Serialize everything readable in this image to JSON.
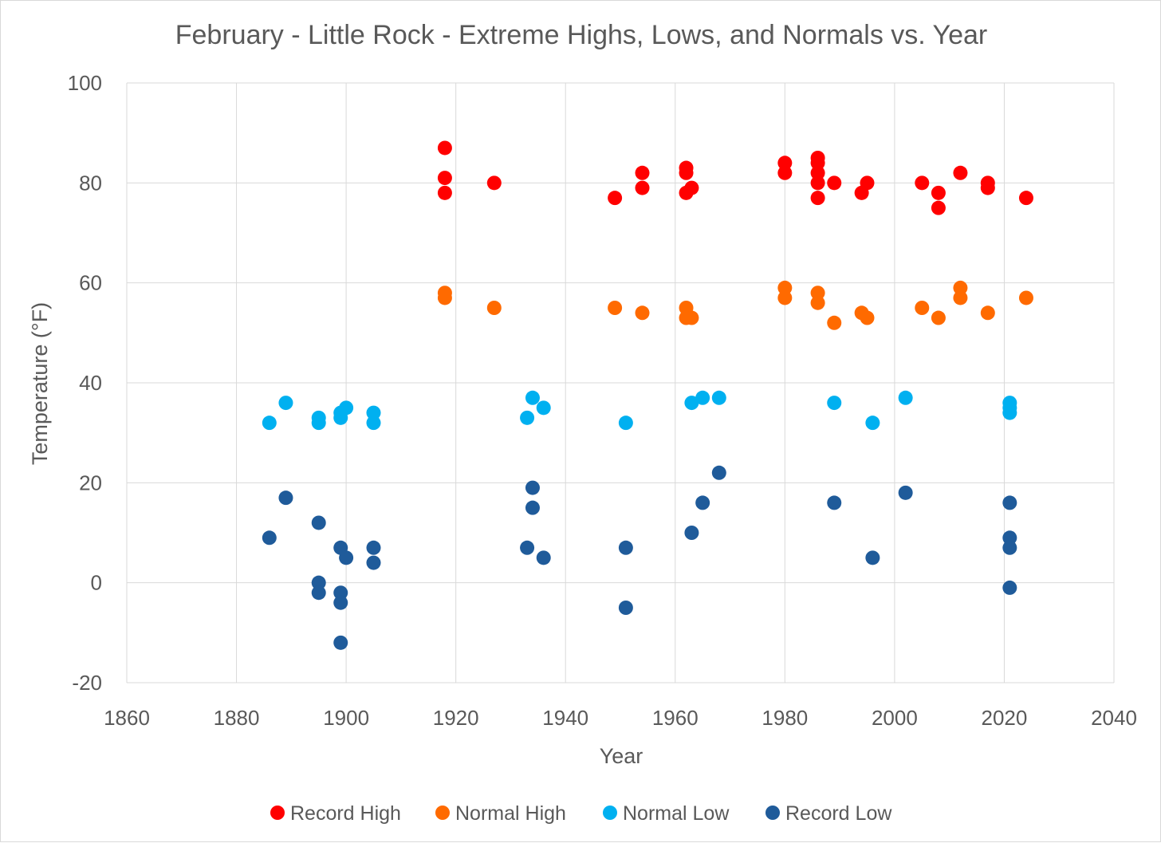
{
  "chart_data": {
    "type": "scatter",
    "title": "February - Little Rock - Extreme Highs, Lows, and Normals vs. Year",
    "xlabel": "Year",
    "ylabel": "Temperature (°F)",
    "xlim": [
      1860,
      2040
    ],
    "ylim": [
      -20,
      100
    ],
    "x_ticks": [
      1860,
      1880,
      1900,
      1920,
      1940,
      1960,
      1980,
      2000,
      2020,
      2040
    ],
    "y_ticks": [
      -20,
      0,
      20,
      40,
      60,
      80,
      100
    ],
    "grid": true,
    "legend_position": "bottom",
    "series": [
      {
        "name": "Record High",
        "color": "#ff0000",
        "points": [
          [
            1918,
            87
          ],
          [
            1918,
            81
          ],
          [
            1918,
            78
          ],
          [
            1927,
            80
          ],
          [
            1949,
            77
          ],
          [
            1954,
            82
          ],
          [
            1954,
            79
          ],
          [
            1962,
            83
          ],
          [
            1962,
            82
          ],
          [
            1962,
            78
          ],
          [
            1963,
            79
          ],
          [
            1980,
            84
          ],
          [
            1980,
            82
          ],
          [
            1986,
            85
          ],
          [
            1986,
            84
          ],
          [
            1986,
            82
          ],
          [
            1986,
            80
          ],
          [
            1986,
            77
          ],
          [
            1989,
            80
          ],
          [
            1994,
            78
          ],
          [
            1995,
            80
          ],
          [
            2005,
            80
          ],
          [
            2008,
            78
          ],
          [
            2008,
            75
          ],
          [
            2012,
            82
          ],
          [
            2017,
            80
          ],
          [
            2017,
            79
          ],
          [
            2024,
            77
          ]
        ]
      },
      {
        "name": "Normal High",
        "color": "#ff6a00",
        "points": [
          [
            1918,
            58
          ],
          [
            1918,
            57
          ],
          [
            1927,
            55
          ],
          [
            1949,
            55
          ],
          [
            1954,
            54
          ],
          [
            1962,
            55
          ],
          [
            1962,
            53
          ],
          [
            1963,
            53
          ],
          [
            1980,
            59
          ],
          [
            1980,
            57
          ],
          [
            1986,
            58
          ],
          [
            1986,
            56
          ],
          [
            1989,
            52
          ],
          [
            1994,
            54
          ],
          [
            1995,
            53
          ],
          [
            2005,
            55
          ],
          [
            2008,
            53
          ],
          [
            2012,
            59
          ],
          [
            2012,
            57
          ],
          [
            2017,
            54
          ],
          [
            2024,
            57
          ]
        ]
      },
      {
        "name": "Normal Low",
        "color": "#00b0f0",
        "points": [
          [
            1886,
            32
          ],
          [
            1889,
            36
          ],
          [
            1895,
            33
          ],
          [
            1895,
            32
          ],
          [
            1899,
            34
          ],
          [
            1899,
            33
          ],
          [
            1900,
            35
          ],
          [
            1905,
            34
          ],
          [
            1905,
            32
          ],
          [
            1933,
            33
          ],
          [
            1934,
            37
          ],
          [
            1936,
            35
          ],
          [
            1951,
            32
          ],
          [
            1963,
            36
          ],
          [
            1965,
            37
          ],
          [
            1968,
            37
          ],
          [
            1989,
            36
          ],
          [
            1996,
            32
          ],
          [
            2002,
            37
          ],
          [
            2021,
            36
          ],
          [
            2021,
            35
          ],
          [
            2021,
            34
          ]
        ]
      },
      {
        "name": "Record Low",
        "color": "#1f5b9a",
        "points": [
          [
            1886,
            9
          ],
          [
            1889,
            17
          ],
          [
            1895,
            12
          ],
          [
            1895,
            0
          ],
          [
            1895,
            -2
          ],
          [
            1899,
            7
          ],
          [
            1899,
            -2
          ],
          [
            1899,
            -4
          ],
          [
            1899,
            -12
          ],
          [
            1900,
            5
          ],
          [
            1905,
            7
          ],
          [
            1905,
            4
          ],
          [
            1933,
            7
          ],
          [
            1934,
            19
          ],
          [
            1934,
            15
          ],
          [
            1936,
            5
          ],
          [
            1951,
            7
          ],
          [
            1951,
            -5
          ],
          [
            1963,
            10
          ],
          [
            1965,
            16
          ],
          [
            1968,
            22
          ],
          [
            1989,
            16
          ],
          [
            1996,
            5
          ],
          [
            2002,
            18
          ],
          [
            2021,
            16
          ],
          [
            2021,
            9
          ],
          [
            2021,
            7
          ],
          [
            2021,
            -1
          ]
        ]
      }
    ]
  }
}
